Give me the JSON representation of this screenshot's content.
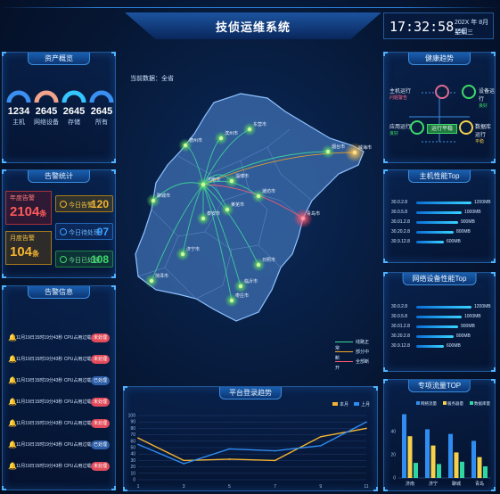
{
  "header": {
    "title": "技侦运维系统"
  },
  "clock": {
    "time": "17:32:58",
    "date": "202X 年 8月 19日",
    "weekday": "星期三"
  },
  "assets": {
    "title": "资产概览",
    "items": [
      {
        "value": "1234",
        "label": "主机",
        "color": "#3a8ff0"
      },
      {
        "value": "2645",
        "label": "网络设备",
        "color": "#f0a28a"
      },
      {
        "value": "2645",
        "label": "存储",
        "color": "#35c6ff"
      },
      {
        "value": "2645",
        "label": "所有",
        "color": "#3a8ff0"
      }
    ]
  },
  "alarm_stats": {
    "title": "告警统计",
    "year": {
      "label": "年度告警",
      "value": "2104",
      "unit": "条",
      "color": "#ff5a5a"
    },
    "month": {
      "label": "月度告警",
      "value": "104",
      "unit": "条",
      "color": "#f5b431"
    },
    "today": {
      "label": "今日告警",
      "value": "120",
      "color": "#f5b431"
    },
    "pending": {
      "label": "今日待处理",
      "value": "97",
      "color": "#3aa0ff"
    },
    "done": {
      "label": "今日已处理",
      "value": "108",
      "color": "#3fd96b"
    }
  },
  "alarm_info": {
    "title": "告警信息",
    "rows": [
      {
        "text": "11月19日15时19分43秒 CPU占用过载",
        "pct": "95%",
        "status": "未处理",
        "kind": "red"
      },
      {
        "text": "11月19日15时19分43秒 CPU占用过载",
        "pct": "95%",
        "status": "未处理",
        "kind": "red"
      },
      {
        "text": "11月19日15时19分43秒 CPU占用过载",
        "pct": "95%",
        "status": "已处理",
        "kind": "blue"
      },
      {
        "text": "11月19日15时19分43秒 CPU占用过载",
        "pct": "95%",
        "status": "未处理",
        "kind": "red"
      },
      {
        "text": "11月19日15时19分43秒 CPU占用过载",
        "pct": "95%",
        "status": "未处理",
        "kind": "red"
      },
      {
        "text": "11月19日15时19分43秒 CPU占用过载",
        "pct": "95%",
        "status": "已处理",
        "kind": "blue"
      },
      {
        "text": "11月19日15时19分43秒 CPU占用过载",
        "pct": "95%",
        "status": "未处理",
        "kind": "red"
      }
    ]
  },
  "map": {
    "current_label": "当前数据：全省",
    "legend": [
      {
        "label": "线路正常",
        "color": "#3fd99a"
      },
      {
        "label": "部分中断",
        "color": "#f5a623"
      },
      {
        "label": "全部断开",
        "color": "#ff5a72"
      }
    ],
    "cities": [
      "德州市",
      "滨州市",
      "东营市",
      "烟台市",
      "威海市",
      "聊城市",
      "济南市",
      "淄博市",
      "潍坊市",
      "青岛市",
      "泰安市",
      "莱芜市",
      "日照市",
      "临沂市",
      "枣庄市",
      "菏泽市",
      "济宁市"
    ]
  },
  "health": {
    "title": "健康趋势",
    "host": {
      "label": "主机运行",
      "status": "问题警告"
    },
    "device": {
      "label": "设备运行",
      "status": "良好"
    },
    "app": {
      "label": "应用运行",
      "status": "良好"
    },
    "db": {
      "label": "数据库运行",
      "status": "平稳"
    },
    "center": "运行平稳"
  },
  "host_perf": {
    "title": "主机性能Top",
    "rows": [
      {
        "ip": "30.0.2.8",
        "value": "1200MB",
        "ratio": 1.0
      },
      {
        "ip": "30.0.5.8",
        "value": "1000MB",
        "ratio": 0.83
      },
      {
        "ip": "30.01.2.8",
        "value": "900MB",
        "ratio": 0.75
      },
      {
        "ip": "30.20.2.8",
        "value": "800MB",
        "ratio": 0.67
      },
      {
        "ip": "30.9.12.8",
        "value": "600MB",
        "ratio": 0.5
      }
    ]
  },
  "net_perf": {
    "title": "网络设备性能Top",
    "rows": [
      {
        "ip": "30.0.2.8",
        "value": "1200MB",
        "ratio": 1.0
      },
      {
        "ip": "30.0.5.8",
        "value": "1000MB",
        "ratio": 0.83
      },
      {
        "ip": "30.01.2.8",
        "value": "900MB",
        "ratio": 0.75
      },
      {
        "ip": "30.20.2.8",
        "value": "800MB",
        "ratio": 0.67
      },
      {
        "ip": "30.9.12.8",
        "value": "600MB",
        "ratio": 0.5
      }
    ]
  },
  "login_trend": {
    "title": "平台登录趋势",
    "chart_data": {
      "type": "line",
      "x": [
        1,
        3,
        5,
        7,
        9,
        11
      ],
      "ylim": [
        0,
        100
      ],
      "yticks": [
        0,
        10,
        20,
        30,
        40,
        50,
        60,
        70,
        80,
        90,
        100
      ],
      "series": [
        {
          "name": "本月",
          "color": "#f5b431",
          "values": [
            65,
            30,
            32,
            30,
            67,
            80
          ]
        },
        {
          "name": "上月",
          "color": "#2f8cf0",
          "values": [
            55,
            25,
            48,
            45,
            53,
            90
          ]
        }
      ]
    }
  },
  "flow_top": {
    "title": "专项流量TOP",
    "chart_data": {
      "type": "bar",
      "categories": [
        "济南",
        "济宁",
        "聊城",
        "青岛"
      ],
      "ylim": [
        0,
        60
      ],
      "yticks": [
        0,
        20,
        40
      ],
      "series": [
        {
          "name": "网络流量",
          "color": "#2f8cf0",
          "values": [
            55,
            42,
            38,
            32
          ]
        },
        {
          "name": "服务器量",
          "color": "#f5d04a",
          "values": [
            36,
            28,
            22,
            18
          ]
        },
        {
          "name": "数据库量",
          "color": "#2fd6a0",
          "values": [
            13,
            12,
            14,
            10
          ]
        }
      ]
    }
  }
}
